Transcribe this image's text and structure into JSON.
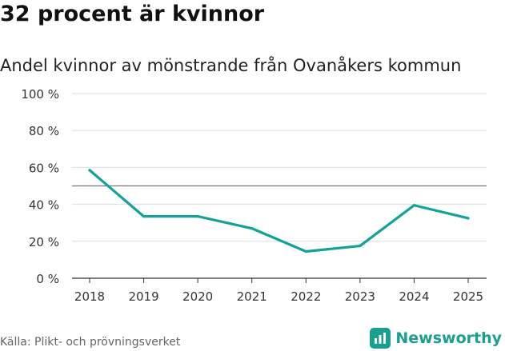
{
  "title": "32 procent är kvinnor",
  "source": "Källa: Plikt- och prövningsverket",
  "brand": "Newsworthy",
  "colors": {
    "line": "#14a197",
    "grid": "#dddddd",
    "reference": "#777777",
    "axis": "#333333"
  },
  "chart_data": {
    "type": "line",
    "title": "Andel kvinnor av mönstrande från Ovanåkers kommun",
    "xlabel": "",
    "ylabel": "",
    "x": [
      "2018",
      "2019",
      "2020",
      "2021",
      "2022",
      "2023",
      "2024",
      "2025"
    ],
    "series": [
      {
        "name": "Andel kvinnor",
        "values": [
          58.5,
          33.5,
          33.5,
          27,
          14.5,
          17.5,
          39.5,
          32.5
        ]
      }
    ],
    "ylim": [
      0,
      100
    ],
    "yticks": [
      0,
      20,
      40,
      60,
      80,
      100
    ],
    "ytick_labels": [
      "0 %",
      "20 %",
      "40 %",
      "60 %",
      "80 %",
      "100 %"
    ],
    "reference_line": 50,
    "grid": true
  }
}
